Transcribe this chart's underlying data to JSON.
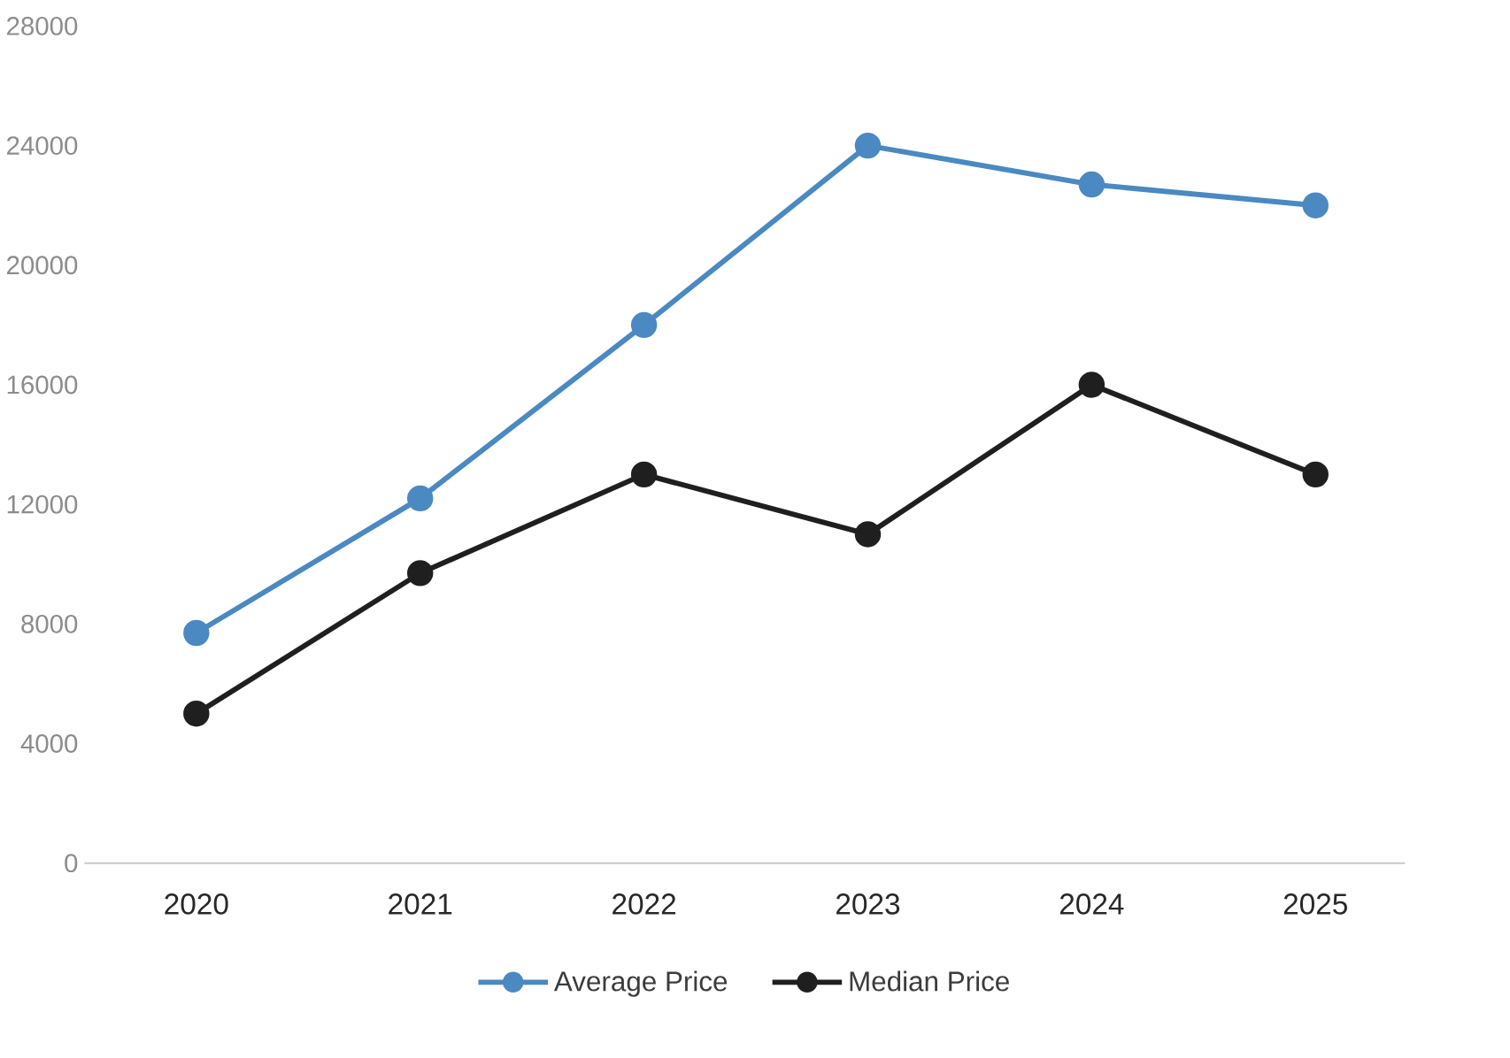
{
  "chart_data": {
    "type": "line",
    "categories": [
      "2020",
      "2021",
      "2022",
      "2023",
      "2024",
      "2025"
    ],
    "series": [
      {
        "name": "Average Price",
        "color": "#4a89c2",
        "values": [
          7700,
          12200,
          18000,
          24000,
          22700,
          22000
        ]
      },
      {
        "name": "Median Price",
        "color": "#1f1f1f",
        "values": [
          5000,
          9700,
          13000,
          11000,
          16000,
          13000
        ]
      }
    ],
    "ylim": [
      0,
      28000
    ],
    "yticks": [
      0,
      4000,
      8000,
      12000,
      16000,
      20000,
      24000,
      28000
    ],
    "legend": "bottom",
    "marker": "circle",
    "line_style": "solid"
  }
}
